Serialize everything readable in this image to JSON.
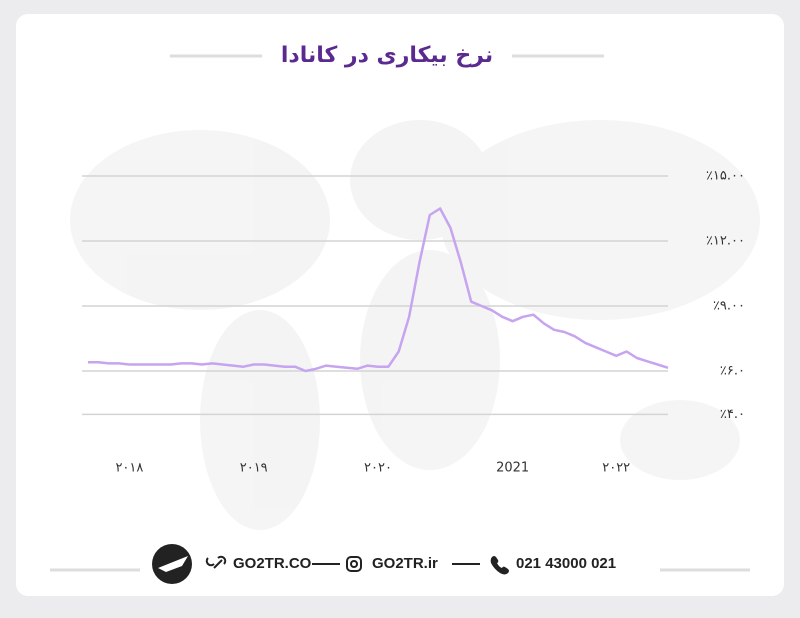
{
  "chart_data": {
    "type": "line",
    "title": "نرخ بیکاری در کانادا",
    "categories": [
      null,
      null,
      null,
      null,
      "۲۰۱۸",
      null,
      null,
      null,
      null,
      null,
      null,
      null,
      null,
      null,
      null,
      null,
      "۲۰۱۹",
      null,
      null,
      null,
      null,
      null,
      null,
      null,
      null,
      null,
      null,
      null,
      "۲۰۲۰",
      null,
      null,
      null,
      null,
      null,
      null,
      null,
      null,
      null,
      null,
      null,
      null,
      "2021",
      null,
      null,
      null,
      null,
      null,
      null,
      null,
      null,
      null,
      "۲۰۲۲",
      null,
      null,
      null,
      null,
      null
    ],
    "series": [
      {
        "name": null,
        "color": "#c6a4ef",
        "values": [
          6.4,
          6.4,
          6.35,
          6.35,
          6.3,
          6.3,
          6.3,
          6.3,
          6.3,
          6.35,
          6.35,
          6.3,
          6.35,
          6.3,
          6.25,
          6.2,
          6.3,
          6.3,
          6.25,
          6.2,
          6.2,
          6.0,
          6.1,
          6.25,
          6.2,
          6.15,
          6.1,
          6.25,
          6.2,
          6.2,
          6.9,
          8.5,
          11.0,
          13.2,
          13.5,
          12.6,
          11.0,
          9.2,
          9.0,
          8.8,
          8.5,
          8.3,
          8.5,
          8.6,
          8.2,
          7.9,
          7.8,
          7.6,
          7.3,
          7.1,
          6.9,
          6.7,
          6.9,
          6.6,
          6.45,
          6.3,
          6.15
        ]
      }
    ],
    "ylim": [
      3,
      15
    ],
    "yticks": [
      {
        "value": 15,
        "label": "٪۱۵.۰۰"
      },
      {
        "value": 12,
        "label": "٪۱۲.۰۰"
      },
      {
        "value": 9,
        "label": "٪۹.۰۰"
      },
      {
        "value": 6,
        "label": "٪۶.۰"
      },
      {
        "value": 4,
        "label": "٪۴.۰"
      }
    ],
    "grid": true
  },
  "footer": {
    "website": "GO2TR.CO",
    "instagram": "GO2TR.ir",
    "phone": "021 43000 021"
  }
}
